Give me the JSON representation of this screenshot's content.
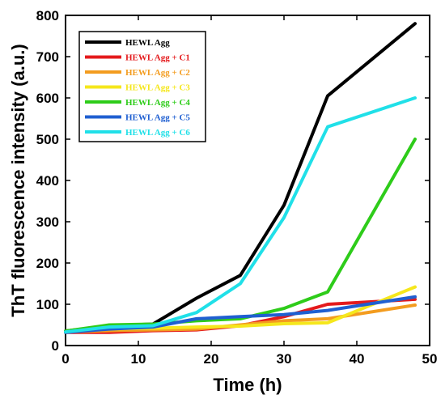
{
  "chart_data": {
    "type": "line",
    "title": "",
    "xlabel": "Time (h)",
    "ylabel": "ThT fluorescence intensity (a.u.)",
    "xlim": [
      0,
      50
    ],
    "ylim": [
      0,
      800
    ],
    "xticks": [
      0,
      10,
      20,
      30,
      40,
      50
    ],
    "yticks": [
      0,
      100,
      200,
      300,
      400,
      500,
      600,
      700,
      800
    ],
    "grid": false,
    "legend_position": "top-left",
    "series": [
      {
        "name": "HEWL Agg",
        "color": "#000000",
        "x": [
          0,
          6,
          12,
          18,
          24,
          30,
          36,
          48
        ],
        "y": [
          35,
          48,
          52,
          115,
          170,
          340,
          605,
          780
        ]
      },
      {
        "name": "HEWL Agg + C1",
        "color": "#e41a1c",
        "x": [
          0,
          6,
          12,
          18,
          24,
          30,
          36,
          48
        ],
        "y": [
          32,
          32,
          36,
          38,
          48,
          70,
          100,
          112
        ]
      },
      {
        "name": "HEWL Agg + C2",
        "color": "#f39c1f",
        "x": [
          0,
          6,
          12,
          18,
          24,
          30,
          36,
          48
        ],
        "y": [
          33,
          36,
          38,
          40,
          50,
          60,
          65,
          98
        ]
      },
      {
        "name": "HEWL Agg + C3",
        "color": "#f5e71c",
        "x": [
          0,
          6,
          12,
          18,
          24,
          30,
          36,
          48
        ],
        "y": [
          34,
          40,
          42,
          45,
          47,
          53,
          55,
          142
        ]
      },
      {
        "name": "HEWL Agg + C4",
        "color": "#2ecc1a",
        "x": [
          0,
          6,
          12,
          18,
          24,
          30,
          36,
          48
        ],
        "y": [
          35,
          50,
          52,
          60,
          65,
          90,
          130,
          500
        ]
      },
      {
        "name": "HEWL Agg + C5",
        "color": "#1f5fd1",
        "x": [
          0,
          6,
          12,
          18,
          24,
          30,
          36,
          48
        ],
        "y": [
          32,
          40,
          45,
          65,
          70,
          75,
          85,
          118
        ]
      },
      {
        "name": "HEWL Agg + C6",
        "color": "#20e0e8",
        "x": [
          0,
          6,
          12,
          18,
          24,
          30,
          36,
          48
        ],
        "y": [
          33,
          45,
          48,
          80,
          150,
          310,
          530,
          600
        ]
      }
    ]
  }
}
